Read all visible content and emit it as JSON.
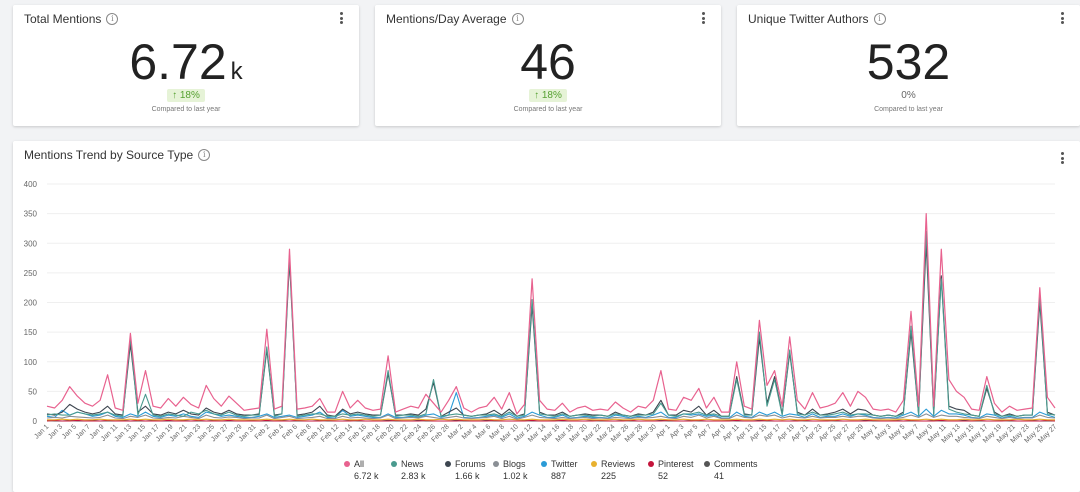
{
  "kpis": [
    {
      "title": "Total Mentions",
      "value": "6.72",
      "unit": "k",
      "change": "↑ 18%",
      "change_style": "positive",
      "compare": "Compared to last year"
    },
    {
      "title": "Mentions/Day Average",
      "value": "46",
      "unit": "",
      "change": "↑ 18%",
      "change_style": "positive",
      "compare": "Compared to last year"
    },
    {
      "title": "Unique Twitter Authors",
      "value": "532",
      "unit": "",
      "change": "0%",
      "change_style": "neutral",
      "compare": "Compared to last year"
    }
  ],
  "trend": {
    "title": "Mentions Trend by Source Type",
    "legend": [
      {
        "name": "All",
        "total": "6.72 k",
        "color": "#e8628f"
      },
      {
        "name": "News",
        "total": "2.83 k",
        "color": "#4a9a8e"
      },
      {
        "name": "Forums",
        "total": "1.66 k",
        "color": "#3d4650"
      },
      {
        "name": "Blogs",
        "total": "1.02 k",
        "color": "#8a8f95"
      },
      {
        "name": "Twitter",
        "total": "887",
        "color": "#2b9bd6"
      },
      {
        "name": "Reviews",
        "total": "225",
        "color": "#e8b12f"
      },
      {
        "name": "Pinterest",
        "total": "52",
        "color": "#c4143b"
      },
      {
        "name": "Comments",
        "total": "41",
        "color": "#555555"
      }
    ]
  },
  "chart_data": {
    "type": "line",
    "title": "Mentions Trend by Source Type",
    "ylim": [
      0,
      400
    ],
    "y_ticks": [
      0,
      50,
      100,
      150,
      200,
      250,
      300,
      350,
      400
    ],
    "grid": true,
    "legend_position": "bottom",
    "x_tick_labels": [
      "Jan 1",
      "Jan 3",
      "Jan 5",
      "Jan 7",
      "Jan 9",
      "Jan 11",
      "Jan 13",
      "Jan 15",
      "Jan 17",
      "Jan 19",
      "Jan 21",
      "Jan 23",
      "Jan 25",
      "Jan 27",
      "Jan 29",
      "Jan 31",
      "Feb 2",
      "Feb 4",
      "Feb 6",
      "Feb 8",
      "Feb 10",
      "Feb 12",
      "Feb 14",
      "Feb 16",
      "Feb 18",
      "Feb 20",
      "Feb 22",
      "Feb 24",
      "Feb 26",
      "Feb 28",
      "Mar 2",
      "Mar 4",
      "Mar 6",
      "Mar 8",
      "Mar 10",
      "Mar 12",
      "Mar 14",
      "Mar 16",
      "Mar 18",
      "Mar 20",
      "Mar 22",
      "Mar 24",
      "Mar 26",
      "Mar 28",
      "Mar 30",
      "Apr 1",
      "Apr 3",
      "Apr 5",
      "Apr 7",
      "Apr 9",
      "Apr 11",
      "Apr 13",
      "Apr 15",
      "Apr 17",
      "Apr 19",
      "Apr 21",
      "Apr 23",
      "Apr 25",
      "Apr 27",
      "Apr 29",
      "May 1",
      "May 3",
      "May 5",
      "May 7",
      "May 9",
      "May 11",
      "May 13",
      "May 15",
      "May 17",
      "May 19",
      "May 21",
      "May 23",
      "May 25",
      "May 27"
    ],
    "series": [
      {
        "name": "All",
        "values": [
          25,
          22,
          35,
          58,
          42,
          30,
          25,
          35,
          78,
          22,
          18,
          148,
          30,
          85,
          25,
          22,
          38,
          25,
          40,
          28,
          22,
          60,
          38,
          25,
          42,
          30,
          18,
          20,
          22,
          155,
          20,
          25,
          290,
          20,
          22,
          25,
          38,
          15,
          15,
          50,
          22,
          35,
          22,
          18,
          20,
          110,
          15,
          20,
          25,
          22,
          45,
          30,
          15,
          35,
          58,
          22,
          15,
          22,
          25,
          40,
          20,
          48,
          12,
          28,
          240,
          35,
          20,
          18,
          30,
          15,
          22,
          25,
          18,
          20,
          18,
          32,
          22,
          15,
          25,
          22,
          35,
          85,
          20,
          18,
          40,
          35,
          55,
          22,
          40,
          15,
          15,
          100,
          25,
          20,
          170,
          60,
          85,
          25,
          142,
          35,
          20,
          48,
          22,
          25,
          30,
          48,
          25,
          50,
          40,
          20,
          18,
          20,
          15,
          35,
          185,
          25,
          350,
          25,
          290,
          70,
          50,
          40,
          20,
          18,
          75,
          30,
          15,
          25,
          18,
          20,
          22,
          225,
          40,
          22
        ]
      },
      {
        "name": "News",
        "values": [
          10,
          12,
          10,
          10,
          15,
          12,
          10,
          12,
          15,
          10,
          8,
          140,
          10,
          45,
          10,
          8,
          12,
          10,
          8,
          15,
          12,
          18,
          12,
          10,
          15,
          10,
          8,
          10,
          10,
          125,
          8,
          12,
          280,
          8,
          10,
          12,
          12,
          8,
          8,
          12,
          10,
          12,
          10,
          8,
          10,
          85,
          8,
          10,
          10,
          8,
          12,
          70,
          8,
          10,
          12,
          10,
          8,
          10,
          10,
          12,
          8,
          15,
          8,
          10,
          205,
          12,
          10,
          8,
          12,
          8,
          10,
          10,
          8,
          10,
          8,
          12,
          10,
          8,
          10,
          10,
          12,
          30,
          10,
          8,
          12,
          12,
          15,
          10,
          12,
          8,
          8,
          70,
          10,
          10,
          150,
          25,
          70,
          10,
          120,
          12,
          10,
          15,
          10,
          10,
          12,
          15,
          10,
          12,
          12,
          10,
          8,
          10,
          8,
          12,
          160,
          10,
          320,
          10,
          240,
          20,
          15,
          12,
          10,
          8,
          60,
          12,
          8,
          10,
          8,
          10,
          10,
          210,
          12,
          10
        ]
      },
      {
        "name": "Forums",
        "values": [
          12,
          10,
          15,
          28,
          20,
          15,
          12,
          15,
          25,
          12,
          10,
          130,
          15,
          25,
          12,
          10,
          15,
          12,
          18,
          12,
          10,
          22,
          15,
          12,
          18,
          12,
          10,
          10,
          12,
          120,
          10,
          12,
          270,
          10,
          12,
          15,
          25,
          10,
          8,
          20,
          12,
          15,
          12,
          10,
          10,
          80,
          10,
          10,
          12,
          10,
          20,
          65,
          8,
          15,
          22,
          10,
          8,
          10,
          12,
          18,
          10,
          20,
          8,
          12,
          195,
          15,
          10,
          10,
          15,
          8,
          10,
          12,
          10,
          10,
          8,
          15,
          10,
          8,
          12,
          10,
          15,
          35,
          10,
          10,
          18,
          15,
          25,
          10,
          18,
          8,
          8,
          75,
          12,
          10,
          140,
          30,
          75,
          12,
          115,
          15,
          10,
          20,
          10,
          12,
          15,
          20,
          12,
          20,
          18,
          10,
          8,
          10,
          8,
          15,
          150,
          12,
          300,
          12,
          245,
          25,
          20,
          18,
          10,
          8,
          55,
          15,
          8,
          12,
          8,
          10,
          10,
          200,
          15,
          10
        ]
      },
      {
        "name": "Blogs",
        "values": [
          5,
          6,
          5,
          8,
          7,
          6,
          5,
          6,
          10,
          5,
          4,
          8,
          6,
          10,
          5,
          4,
          6,
          5,
          8,
          6,
          4,
          10,
          6,
          5,
          7,
          6,
          4,
          5,
          5,
          10,
          4,
          6,
          8,
          4,
          5,
          6,
          8,
          4,
          4,
          8,
          5,
          6,
          5,
          4,
          5,
          10,
          4,
          5,
          6,
          5,
          8,
          6,
          4,
          6,
          8,
          5,
          4,
          5,
          6,
          8,
          4,
          8,
          3,
          6,
          10,
          6,
          5,
          4,
          6,
          4,
          5,
          6,
          4,
          5,
          4,
          6,
          5,
          4,
          6,
          5,
          6,
          8,
          5,
          4,
          8,
          6,
          10,
          5,
          8,
          4,
          4,
          10,
          6,
          5,
          10,
          8,
          10,
          5,
          8,
          6,
          5,
          8,
          5,
          6,
          6,
          8,
          6,
          8,
          8,
          5,
          4,
          5,
          4,
          6,
          10,
          6,
          12,
          6,
          10,
          8,
          8,
          6,
          5,
          4,
          8,
          6,
          4,
          6,
          4,
          5,
          5,
          10,
          6,
          5
        ]
      },
      {
        "name": "Twitter",
        "values": [
          8,
          6,
          18,
          10,
          15,
          12,
          8,
          10,
          15,
          8,
          6,
          12,
          8,
          15,
          8,
          6,
          10,
          8,
          12,
          8,
          6,
          15,
          12,
          8,
          10,
          8,
          6,
          6,
          8,
          12,
          6,
          8,
          10,
          6,
          8,
          10,
          15,
          6,
          5,
          18,
          8,
          10,
          8,
          6,
          6,
          12,
          6,
          6,
          8,
          6,
          10,
          12,
          6,
          10,
          48,
          6,
          5,
          6,
          8,
          10,
          6,
          12,
          5,
          8,
          15,
          10,
          6,
          6,
          10,
          5,
          6,
          8,
          6,
          6,
          5,
          10,
          8,
          5,
          8,
          6,
          10,
          15,
          6,
          6,
          12,
          10,
          12,
          8,
          10,
          5,
          5,
          15,
          8,
          6,
          15,
          10,
          15,
          8,
          12,
          10,
          6,
          12,
          6,
          8,
          8,
          12,
          8,
          12,
          10,
          6,
          5,
          6,
          5,
          10,
          15,
          8,
          20,
          8,
          18,
          12,
          12,
          10,
          6,
          5,
          12,
          10,
          5,
          8,
          5,
          6,
          6,
          15,
          10,
          6
        ]
      },
      {
        "name": "Reviews",
        "values": [
          2,
          2,
          3,
          2,
          3,
          2,
          2,
          3,
          2,
          2,
          2,
          3,
          2,
          3,
          2,
          2,
          3,
          2,
          2,
          3,
          2,
          3,
          2,
          2,
          3,
          2,
          2,
          2,
          2,
          3,
          2,
          2,
          3,
          2,
          2,
          3,
          2,
          2,
          2,
          3,
          2,
          2,
          3,
          2,
          2,
          3,
          2,
          2,
          2,
          3,
          2,
          2,
          3,
          2,
          3,
          2,
          2,
          2,
          3,
          2,
          2,
          3,
          2,
          2,
          3,
          2,
          2,
          2,
          3,
          2,
          2,
          3,
          2,
          2,
          2,
          3,
          2,
          2,
          3,
          2,
          2,
          3,
          2,
          2,
          3,
          2,
          2,
          3,
          2,
          2,
          2,
          3,
          2,
          2,
          3,
          2,
          3,
          2,
          3,
          2,
          2,
          3,
          2,
          2,
          2,
          3,
          2,
          2,
          3,
          2,
          2,
          2,
          2,
          3,
          2,
          2,
          3,
          2,
          3,
          2,
          2,
          3,
          2,
          2,
          3,
          2,
          2,
          2,
          3,
          2,
          2,
          3,
          2,
          2
        ]
      },
      {
        "name": "Pinterest",
        "values": [
          0,
          1,
          0,
          0,
          1,
          0,
          0,
          0,
          1,
          0,
          0,
          0,
          1,
          0,
          0,
          0,
          1,
          0,
          0,
          0,
          1,
          0,
          0,
          0,
          1,
          0,
          0,
          0,
          0,
          1,
          0,
          0,
          0,
          1,
          0,
          0,
          0,
          1,
          0,
          0,
          0,
          1,
          0,
          0,
          0,
          0,
          1,
          0,
          0,
          0,
          1,
          0,
          0,
          0,
          0,
          1,
          0,
          0,
          0,
          1,
          0,
          0,
          0,
          0,
          1,
          0,
          0,
          0,
          1,
          0,
          0,
          0,
          0,
          1,
          0,
          0,
          0,
          1,
          0,
          0,
          0,
          0,
          1,
          0,
          0,
          0,
          1,
          0,
          0,
          0,
          0,
          1,
          0,
          0,
          0,
          1,
          0,
          0,
          0,
          0,
          1,
          0,
          0,
          0,
          1,
          0,
          0,
          0,
          0,
          1,
          0,
          0,
          0,
          0,
          1,
          0,
          0,
          0,
          1,
          0,
          0,
          0,
          0,
          1,
          0,
          0,
          0,
          1,
          0,
          0,
          0,
          0,
          1,
          0
        ]
      },
      {
        "name": "Comments",
        "values": [
          1,
          0,
          0,
          1,
          0,
          0,
          1,
          0,
          0,
          0,
          1,
          0,
          0,
          0,
          1,
          0,
          0,
          0,
          1,
          0,
          0,
          0,
          1,
          0,
          0,
          0,
          0,
          1,
          0,
          0,
          0,
          1,
          0,
          0,
          0,
          0,
          1,
          0,
          0,
          0,
          1,
          0,
          0,
          0,
          0,
          1,
          0,
          0,
          0,
          1,
          0,
          0,
          0,
          0,
          1,
          0,
          0,
          0,
          1,
          0,
          0,
          0,
          0,
          1,
          0,
          0,
          0,
          1,
          0,
          0,
          0,
          0,
          1,
          0,
          0,
          0,
          1,
          0,
          0,
          0,
          0,
          1,
          0,
          0,
          0,
          1,
          0,
          0,
          0,
          0,
          1,
          0,
          0,
          0,
          1,
          0,
          0,
          0,
          0,
          1,
          0,
          0,
          0,
          1,
          0,
          0,
          0,
          0,
          1,
          0,
          0,
          0,
          1,
          0,
          0,
          0,
          0,
          1,
          0,
          0,
          0,
          1,
          0,
          0,
          0,
          0,
          1,
          0,
          0,
          0,
          1,
          0,
          0,
          0
        ]
      }
    ]
  }
}
